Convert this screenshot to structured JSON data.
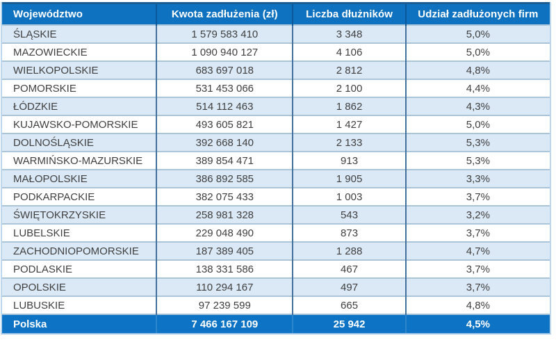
{
  "chart_data": {
    "type": "table",
    "columns": [
      "Województwo",
      "Kwota zadłużenia (zł)",
      "Liczba dłużników",
      "Udział zadłużonych firm"
    ],
    "rows": [
      [
        "ŚLĄSKIE",
        "1 579 583 410",
        "3 348",
        "5,0%"
      ],
      [
        "MAZOWIECKIE",
        "1 090 940 127",
        "4 106",
        "5,0%"
      ],
      [
        "WIELKOPOLSKIE",
        "683 697 018",
        "2 812",
        "4,8%"
      ],
      [
        "POMORSKIE",
        "531 453 066",
        "2 100",
        "4,4%"
      ],
      [
        "ŁÓDZKIE",
        "514 112 463",
        "1 862",
        "4,3%"
      ],
      [
        "KUJAWSKO-POMORSKIE",
        "493 605 821",
        "1 427",
        "5,0%"
      ],
      [
        "DOLNOŚLĄSKIE",
        "392 668 140",
        "2 133",
        "5,3%"
      ],
      [
        "WARMIŃSKO-MAZURSKIE",
        "389 854 471",
        "913",
        "5,3%"
      ],
      [
        "MAŁOPOLSKIE",
        "386 892 585",
        "1 905",
        "3,3%"
      ],
      [
        "PODKARPACKIE",
        "382 075 433",
        "1 003",
        "3,7%"
      ],
      [
        "ŚWIĘTOKRZYSKIE",
        "258 981 328",
        "543",
        "3,2%"
      ],
      [
        "LUBELSKIE",
        "229 048 490",
        "873",
        "3,7%"
      ],
      [
        "ZACHODNIOPOMORSKIE",
        "187 389 405",
        "1 288",
        "4,7%"
      ],
      [
        "PODLASKIE",
        "138 331 586",
        "467",
        "3,7%"
      ],
      [
        "OPOLSKIE",
        "110 294 167",
        "497",
        "3,7%"
      ],
      [
        "LUBUSKIE",
        "97 239 599",
        "665",
        "4,8%"
      ]
    ],
    "footer": [
      "Polska",
      "7 466 167 109",
      "25 942",
      "4,5%"
    ],
    "layout": {
      "header_position": "top",
      "summary_row_position": "bottom",
      "alternating_rows": true
    }
  },
  "colors": {
    "header_bg": "#0e72c0",
    "footer_bg": "#0d73c5",
    "alt_row_bg": "#dbe9f6",
    "row_bg": "#ffffff",
    "row_border": "#aac4da",
    "column_border": "#41719c",
    "header_column_border": "#0a5a9b",
    "header_top_border": "#1a5d94",
    "outer_border": "#bdd7ee",
    "header_text": "#ffffff",
    "body_text": "#3f3f3f"
  }
}
